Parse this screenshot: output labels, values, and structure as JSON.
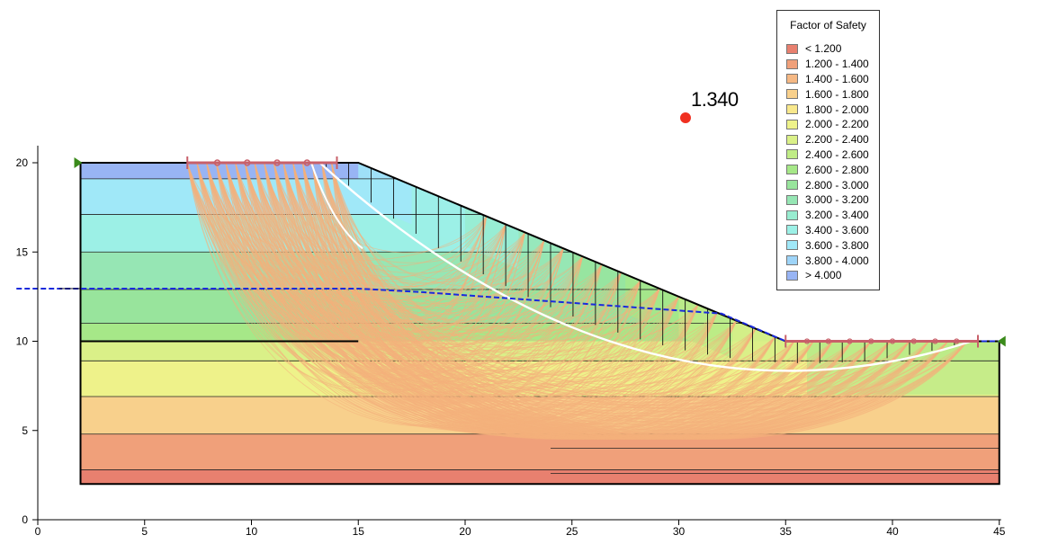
{
  "x_axis_ticks": [
    "0",
    "5",
    "10",
    "15",
    "20",
    "25",
    "30",
    "35",
    "40",
    "45"
  ],
  "y_axis_ticks": [
    "0",
    "5",
    "10",
    "15",
    "20"
  ],
  "critical_fos": "1.340",
  "legend": {
    "title": "Factor of Safety",
    "items": [
      {
        "label": "< 1.200",
        "color": "#e8806f"
      },
      {
        "label": "1.200 - 1.400",
        "color": "#f0a07a"
      },
      {
        "label": "1.400 - 1.600",
        "color": "#f5b884"
      },
      {
        "label": "1.600 - 1.800",
        "color": "#f8d08c"
      },
      {
        "label": "1.800 - 2.000",
        "color": "#f8e88c"
      },
      {
        "label": "2.000 - 2.200",
        "color": "#eef28a"
      },
      {
        "label": "2.200 - 2.400",
        "color": "#daf088"
      },
      {
        "label": "2.400 - 2.600",
        "color": "#c0ec86"
      },
      {
        "label": "2.600 - 2.800",
        "color": "#a6e888"
      },
      {
        "label": "2.800 - 3.000",
        "color": "#98e49c"
      },
      {
        "label": "3.000 - 3.200",
        "color": "#96e6b4"
      },
      {
        "label": "3.200 - 3.400",
        "color": "#98ecd0"
      },
      {
        "label": "3.400 - 3.600",
        "color": "#9cf0e6"
      },
      {
        "label": "3.600 - 3.800",
        "color": "#a0e8f8"
      },
      {
        "label": "3.800 - 4.000",
        "color": "#9ed4f8"
      },
      {
        "label": "> 4.000",
        "color": "#98b4f4"
      }
    ]
  },
  "model": {
    "crest_y": 20,
    "toe_y": 10,
    "base_y": 2,
    "left_x": 2,
    "crest_x": 15,
    "toe_x": 35,
    "right_x": 45,
    "water_table": [
      [
        -1,
        12.95
      ],
      [
        15,
        12.95
      ],
      [
        18,
        12.75
      ],
      [
        25,
        12.15
      ],
      [
        32,
        11.55
      ],
      [
        35,
        10.0
      ],
      [
        45,
        10.0
      ]
    ],
    "critical_circle": {
      "entry_x": 13.2,
      "entry_y": 20,
      "exit_x": 43.7,
      "exit_y": 10,
      "bottom_y": 6.45,
      "bottom_x": 31
    },
    "slip_entry_range": [
      7,
      14
    ],
    "slip_exit_range": [
      35,
      44
    ],
    "slip_marker_x": [
      8.4,
      9.8,
      11.2,
      12.6
    ],
    "exit_marker_x": [
      36,
      37,
      38,
      39,
      40,
      41,
      42,
      43
    ]
  },
  "colors": {
    "slip_surface": "#f4b07c",
    "water_table": "#1a2adc",
    "critical_circle": "#ffffff",
    "range_line": "#c8606a",
    "support_triangle": "#3a8a1a",
    "fos_dot": "#f03020"
  }
}
